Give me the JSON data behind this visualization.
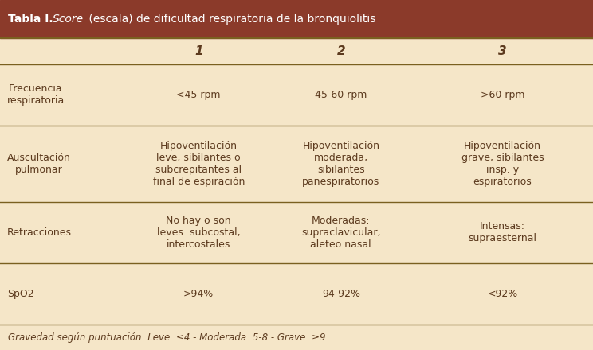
{
  "title_bold": "Tabla I.",
  "title_italic": "Score",
  "title_rest": " (escala) de dificultad respiratoria de la bronquiolitis",
  "header_bg": "#8B3A2A",
  "header_text_color": "#FFFFFF",
  "body_bg": "#F5E6C8",
  "body_text_color": "#5C3A1E",
  "line_color": "#7A6020",
  "footer_italic": "Gravedad según puntuación: Leve: ≤4 - Moderada: 5-8 - Grave: ≥9",
  "col_headers": [
    "1",
    "2",
    "3"
  ],
  "rows": [
    {
      "label": "Frecuencia\nrespiratoria",
      "col1": "<45 rpm",
      "col2": "45-60 rpm",
      "col3": ">60 rpm"
    },
    {
      "label": "Auscultación\npulmonar",
      "col1": "Hipoventilación\nleve, sibilantes o\nsubcrepitantes al\nfinal de espiración",
      "col2": "Hipoventilación\nmoderada,\nsibilantes\npanespiratorios",
      "col3": "Hipoventilación\ngrave, sibilantes\ninsp. y\nespiratorios"
    },
    {
      "label": "Retracciones",
      "col1": "No hay o son\nleves: subcostal,\nintercostales",
      "col2": "Moderadas:\nsupraclavicular,\naleteo nasal",
      "col3": "Intensas:\nsupraesternal"
    },
    {
      "label": "SpO2",
      "col1": ">94%",
      "col2": "94-92%",
      "col3": "<92%"
    }
  ],
  "figsize": [
    7.44,
    4.4
  ],
  "dpi": 100
}
